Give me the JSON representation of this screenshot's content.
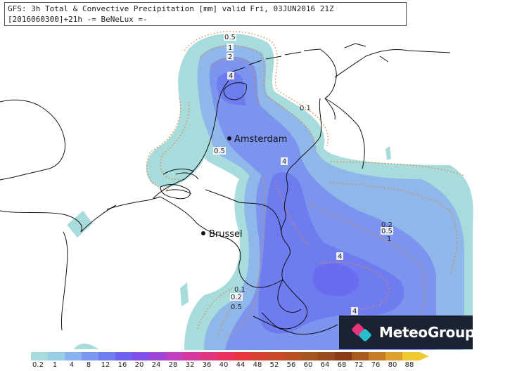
{
  "header": {
    "line1": "GFS: 3h Total & Convective Precipitation [mm] valid Fri, 03JUN2016 21Z",
    "line2": "[2016060300]+21h  -= BeNeLux =-"
  },
  "cities": {
    "amsterdam": "Amsterdam",
    "brussel": "Brussel"
  },
  "contour_labels": {
    "l1": "0.5",
    "l2": "1",
    "l3": "2",
    "l4": "4",
    "l5": "0.1",
    "l6": "0.5",
    "l7": "4",
    "l8": "0.2",
    "l9": "0.5",
    "l10": "1",
    "l11": "4",
    "l12": "0.1",
    "l13": "0.2",
    "l14": "0.5",
    "l15": "4"
  },
  "logo": {
    "text": "MeteoGroup"
  },
  "colorbar": {
    "labels": [
      "0.2",
      "1",
      "4",
      "8",
      "12",
      "16",
      "20",
      "24",
      "28",
      "32",
      "36",
      "40",
      "44",
      "48",
      "52",
      "56",
      "60",
      "64",
      "68",
      "72",
      "76",
      "80",
      "88"
    ],
    "colors": [
      "#a8dcdc",
      "#99cfe6",
      "#8ab4ef",
      "#7a98f0",
      "#6e7ef0",
      "#7060ee",
      "#8050e8",
      "#a045d8",
      "#c040c0",
      "#d23aa2",
      "#e03682",
      "#e8345e",
      "#e8343c",
      "#d84030",
      "#c84a28",
      "#b85024",
      "#a85420",
      "#984a1c",
      "#8a3a18",
      "#a85a20",
      "#c87a28",
      "#e0a030",
      "#f0c830"
    ]
  }
}
